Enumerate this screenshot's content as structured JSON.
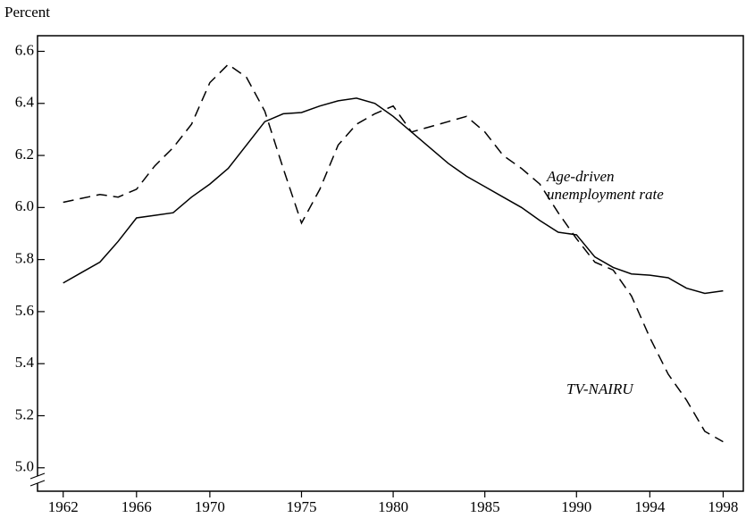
{
  "chart_data": {
    "type": "line",
    "y_label": "Percent",
    "x": [
      1962,
      1963,
      1964,
      1965,
      1966,
      1967,
      1968,
      1969,
      1970,
      1971,
      1972,
      1973,
      1974,
      1975,
      1976,
      1977,
      1978,
      1979,
      1980,
      1981,
      1982,
      1983,
      1984,
      1985,
      1986,
      1987,
      1988,
      1989,
      1990,
      1991,
      1992,
      1993,
      1994,
      1995,
      1996,
      1997,
      1998
    ],
    "series": [
      {
        "name": "Age-driven unemployment rate",
        "color": "#000000",
        "style": "solid",
        "values": [
          5.71,
          5.75,
          5.79,
          5.87,
          5.96,
          5.97,
          5.98,
          6.04,
          6.09,
          6.15,
          6.24,
          6.33,
          6.36,
          6.365,
          6.39,
          6.41,
          6.42,
          6.4,
          6.35,
          6.29,
          6.23,
          6.17,
          6.12,
          6.08,
          6.04,
          6.0,
          5.95,
          5.905,
          5.895,
          5.81,
          5.77,
          5.745,
          5.74,
          5.73,
          5.69,
          5.67,
          5.68
        ]
      },
      {
        "name": "TV-NAIRU",
        "color": "#000000",
        "style": "dashed",
        "values": [
          6.02,
          6.035,
          6.05,
          6.04,
          6.07,
          6.16,
          6.23,
          6.32,
          6.48,
          6.55,
          6.5,
          6.37,
          6.15,
          5.94,
          6.07,
          6.24,
          6.32,
          6.36,
          6.39,
          6.29,
          6.31,
          6.33,
          6.35,
          6.29,
          6.2,
          6.15,
          6.09,
          5.98,
          5.88,
          5.79,
          5.76,
          5.66,
          5.5,
          5.36,
          5.26,
          5.14,
          5.1
        ]
      }
    ],
    "xlim": [
      1960.6,
      1999.1
    ],
    "xticks": [
      1962,
      1966,
      1970,
      1975,
      1980,
      1985,
      1990,
      1994,
      1998
    ],
    "ylim": [
      4.91,
      6.66
    ],
    "yticks": [
      {
        "value": 5,
        "label": "5.0"
      },
      5.2,
      5.4,
      5.6,
      5.8,
      {
        "value": 6,
        "label": "6.0"
      },
      6.2,
      6.4,
      6.6
    ],
    "grid": false
  }
}
